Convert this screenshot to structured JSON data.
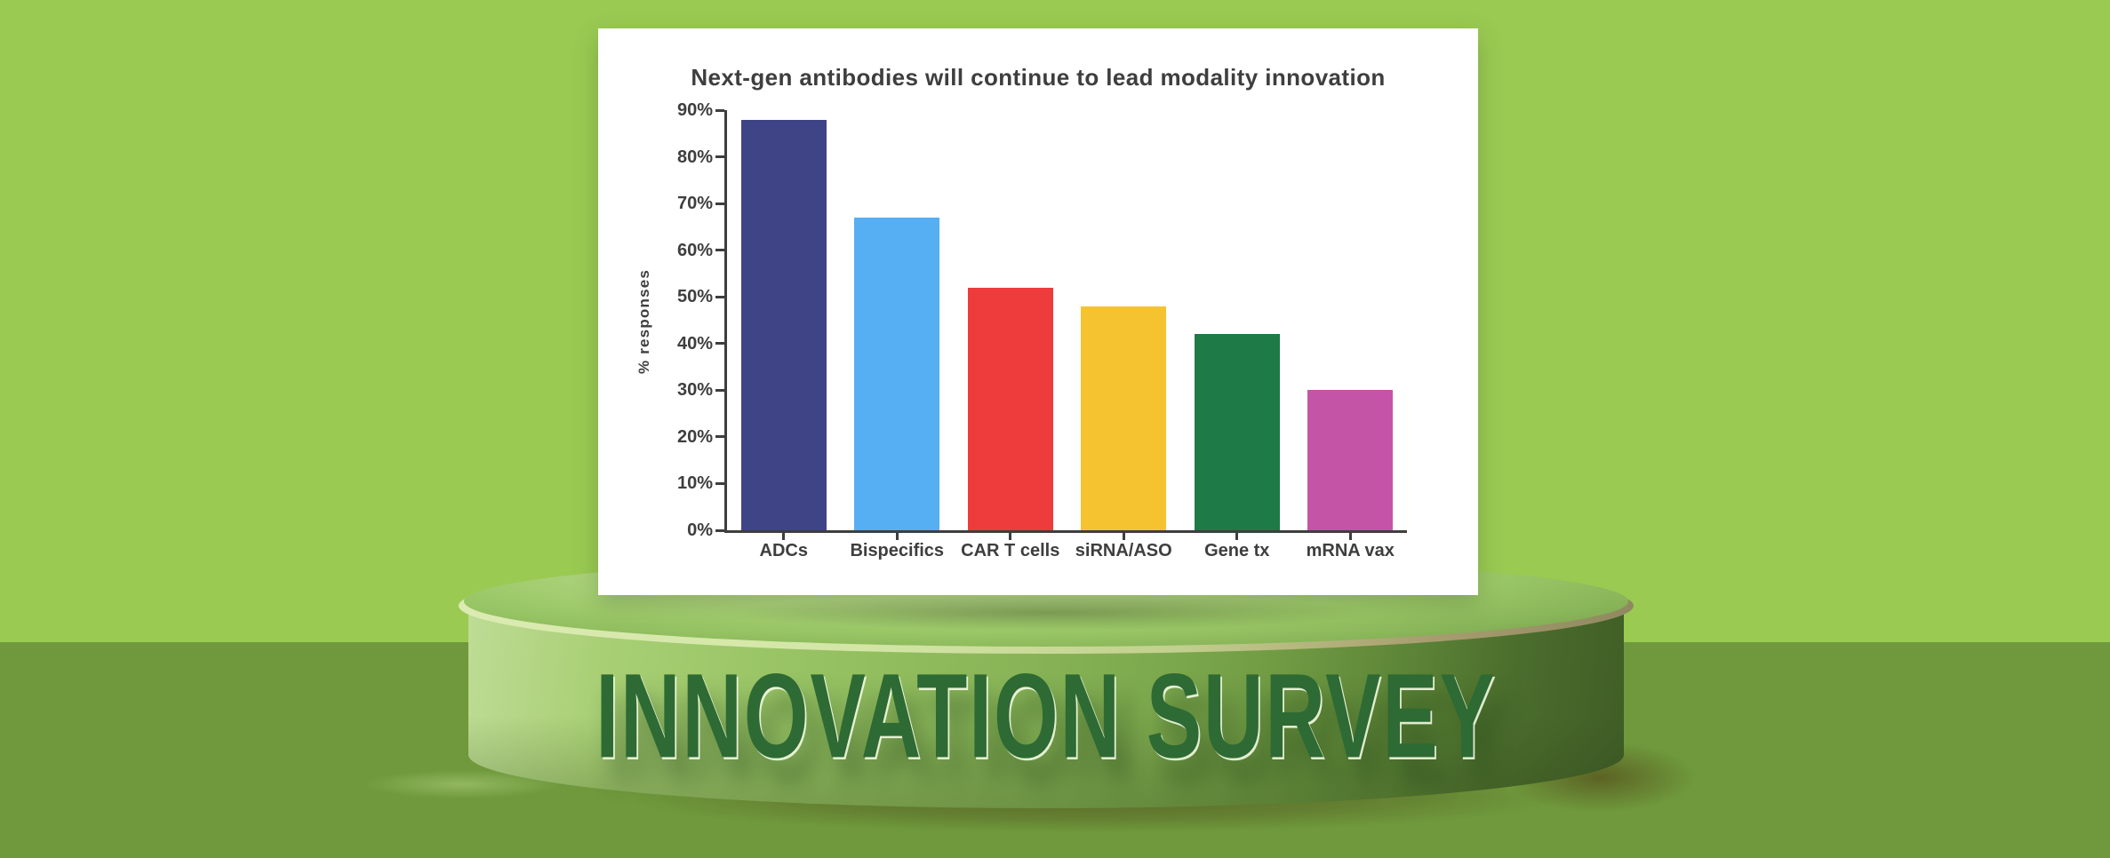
{
  "podium": {
    "label": "INNOVATION SURVEY"
  },
  "chart_data": {
    "type": "bar",
    "title": "Next-gen antibodies will continue to lead modality innovation",
    "xlabel": "",
    "ylabel": "% responses",
    "categories": [
      "ADCs",
      "Bispecifics",
      "CAR T cells",
      "siRNA/ASO",
      "Gene tx",
      "mRNA vax"
    ],
    "values": [
      88,
      67,
      52,
      48,
      42,
      30
    ],
    "unit": "%",
    "ylim": [
      0,
      90
    ],
    "yticks": [
      0,
      10,
      20,
      30,
      40,
      50,
      60,
      70,
      80,
      90
    ],
    "ytick_labels": [
      "0%",
      "10%",
      "20%",
      "30%",
      "40%",
      "50%",
      "60%",
      "70%",
      "80%",
      "90%"
    ],
    "bar_colors": [
      "#3f4487",
      "#55aff2",
      "#ee3b3b",
      "#f5c32f",
      "#1e7a46",
      "#c454a6"
    ],
    "grid": false,
    "legend": "none"
  },
  "colors": {
    "background_top": "#9aca52",
    "background_floor": "#6f993c",
    "panel": "#ffffff",
    "axis": "#3e3e3e",
    "title_text": "#3e3e3e",
    "podium_light": "#bedc95",
    "podium_dark": "#3f5d26",
    "podium_rim": "#d3e6a6",
    "podium_text": "#2e6a33"
  }
}
